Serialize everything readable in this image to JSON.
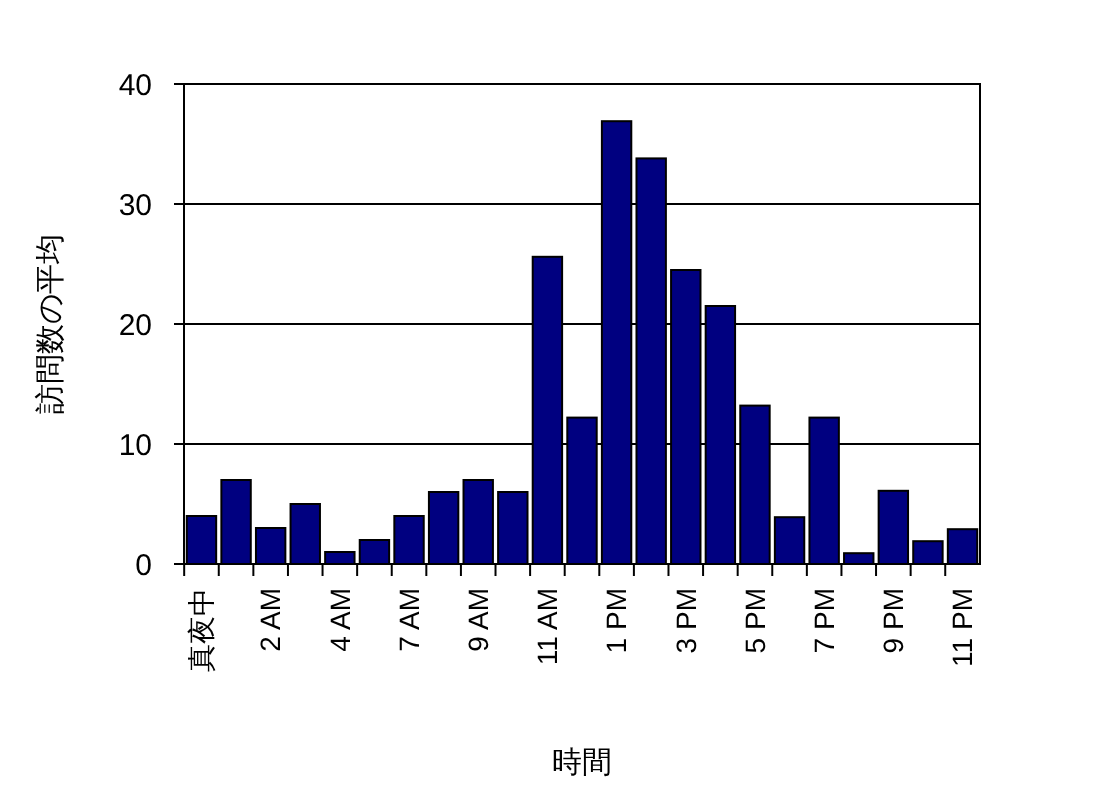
{
  "chart_data": {
    "type": "bar",
    "xlabel": "時間",
    "ylabel": "訪問数の平均",
    "categories": [
      "真夜中",
      null,
      "2 AM",
      null,
      "4 AM",
      null,
      "7 AM",
      null,
      "9 AM",
      null,
      "11 AM",
      null,
      "1 PM",
      null,
      "3 PM",
      null,
      "5 PM",
      null,
      "7 PM",
      null,
      "9 PM",
      null,
      "11 PM"
    ],
    "values": [
      4,
      7,
      3,
      5,
      1,
      2,
      4,
      6,
      7,
      6,
      25.6,
      12.2,
      36.9,
      33.8,
      24.5,
      21.5,
      13.2,
      3.9,
      12.2,
      0.9,
      6.1,
      1.9,
      2.9
    ],
    "color": "#000080",
    "ylim": [
      0,
      40
    ],
    "yticks": [
      0,
      10,
      20,
      30,
      40
    ],
    "grid": "y"
  }
}
